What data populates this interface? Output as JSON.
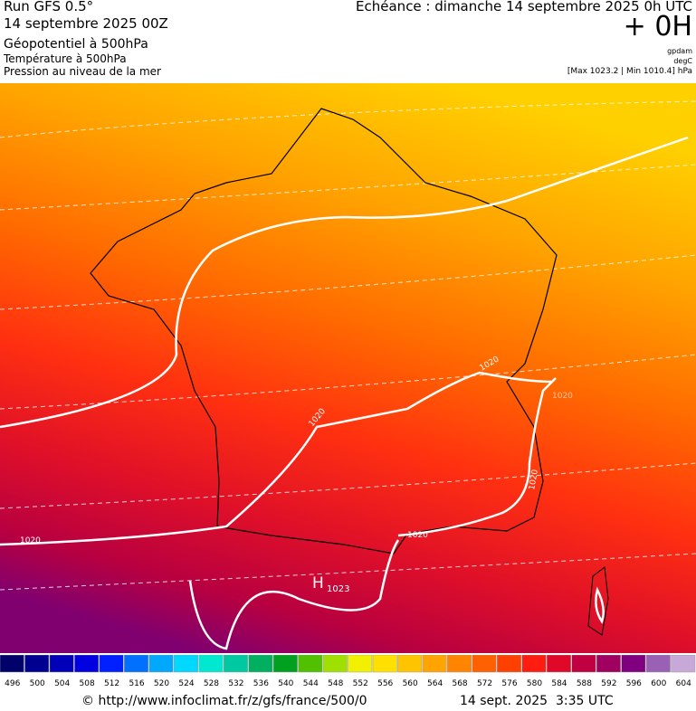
{
  "header": {
    "run": "Run GFS 0.5°",
    "date": "14 septembre 2025 00Z",
    "field1": "Géopotentiel à 500hPa",
    "field2": "Température à 500hPa",
    "field3": "Pression au niveau de la mer",
    "echeance": "Echéance : dimanche 14 septembre 2025 0h UTC",
    "offset": "+ 0H",
    "unit1": "gpdam",
    "unit2": "degC",
    "range": "[Max 1023.2 | Min 1010.4] hPa"
  },
  "map": {
    "labels": [
      "1020",
      "1020",
      "1020",
      "1020",
      "1020",
      "1020"
    ],
    "high": "H",
    "high_value": "1023"
  },
  "colorbar": {
    "ticks": [
      496,
      500,
      504,
      508,
      512,
      516,
      520,
      524,
      528,
      532,
      536,
      540,
      544,
      548,
      552,
      556,
      560,
      564,
      568,
      572,
      576,
      580,
      584,
      588,
      592,
      596,
      600,
      604
    ],
    "colors": [
      "#00006a",
      "#000090",
      "#0000b8",
      "#0000e0",
      "#0020ff",
      "#0070ff",
      "#00a8ff",
      "#00d8ff",
      "#00e8d0",
      "#00c8a0",
      "#00b060",
      "#00a020",
      "#50c000",
      "#a0e000",
      "#f0f000",
      "#ffe000",
      "#ffc400",
      "#ffa400",
      "#ff8400",
      "#ff6000",
      "#ff4000",
      "#ff1c10",
      "#e00828",
      "#c00040",
      "#a00060",
      "#800080",
      "#9a60b4",
      "#c8a8d8"
    ]
  },
  "footer": {
    "url": "© http://www.infoclimat.fr/z/gfs/france/500/0",
    "time": "14 sept. 2025  3:35 UTC"
  }
}
